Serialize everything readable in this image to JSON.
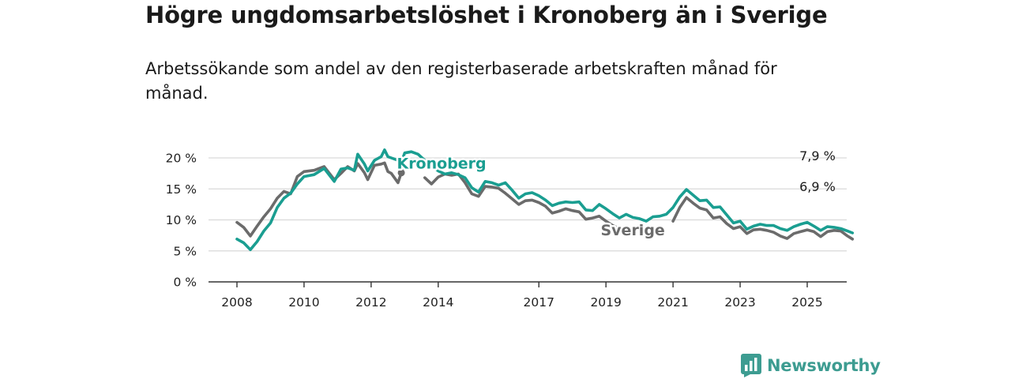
{
  "chart_data": {
    "type": "line",
    "title": "Högre ungdomsarbetslöshet i Kronoberg än i Sverige",
    "subtitle": "Arbetssökande som andel av den registerbaserade arbetskraften månad för månad.",
    "xlabel": "",
    "ylabel": "",
    "ylim": [
      0,
      20
    ],
    "xlim": [
      2007.6,
      2026.2
    ],
    "grid": true,
    "x_ticks": [
      "2008",
      "2010",
      "2012",
      "2014",
      "2017",
      "2019",
      "2021",
      "2023",
      "2025"
    ],
    "y_ticks": [
      "0 %",
      "5 %",
      "10 %",
      "15 %",
      "20 %"
    ],
    "series": [
      {
        "name": "Kronoberg",
        "color": "#1a9e91",
        "end_label": "7,9 %",
        "points": [
          [
            2008.0,
            6.9
          ],
          [
            2008.2,
            6.3
          ],
          [
            2008.4,
            5.2
          ],
          [
            2008.6,
            6.5
          ],
          [
            2008.8,
            8.2
          ],
          [
            2009.0,
            9.5
          ],
          [
            2009.2,
            12.0
          ],
          [
            2009.4,
            13.5
          ],
          [
            2009.6,
            14.3
          ],
          [
            2009.8,
            15.8
          ],
          [
            2010.0,
            17.0
          ],
          [
            2010.3,
            17.3
          ],
          [
            2010.6,
            18.3
          ],
          [
            2010.9,
            16.2
          ],
          [
            2011.1,
            18.2
          ],
          [
            2011.3,
            18.4
          ],
          [
            2011.5,
            18.0
          ],
          [
            2011.6,
            20.6
          ],
          [
            2011.8,
            19.0
          ],
          [
            2011.9,
            17.9
          ],
          [
            2012.1,
            19.6
          ],
          [
            2012.3,
            20.2
          ],
          [
            2012.4,
            21.3
          ],
          [
            2012.5,
            20.2
          ],
          [
            2012.6,
            20.0
          ],
          [
            2012.8,
            19.6
          ],
          [
            2012.9,
            18.6
          ]
        ]
      },
      {
        "name": "Kronoberg",
        "color": "#1a9e91",
        "end_label": "",
        "points": [
          [
            2012.9,
            19.3
          ],
          [
            2013.0,
            20.8
          ],
          [
            2013.2,
            21.0
          ],
          [
            2013.4,
            20.6
          ],
          [
            2013.6,
            19.6
          ],
          [
            2013.8,
            18.8
          ],
          [
            2014.0,
            17.9
          ],
          [
            2014.2,
            17.4
          ],
          [
            2014.4,
            17.6
          ],
          [
            2014.6,
            17.3
          ],
          [
            2014.8,
            16.8
          ],
          [
            2015.0,
            15.2
          ],
          [
            2015.2,
            14.5
          ],
          [
            2015.4,
            16.2
          ],
          [
            2015.6,
            16.0
          ],
          [
            2015.8,
            15.6
          ],
          [
            2016.0,
            16.0
          ],
          [
            2016.2,
            14.8
          ],
          [
            2016.4,
            13.5
          ],
          [
            2016.6,
            14.2
          ],
          [
            2016.8,
            14.4
          ],
          [
            2017.0,
            13.9
          ],
          [
            2017.2,
            13.2
          ],
          [
            2017.4,
            12.3
          ],
          [
            2017.6,
            12.7
          ],
          [
            2017.8,
            12.9
          ],
          [
            2018.0,
            12.8
          ],
          [
            2018.2,
            12.9
          ],
          [
            2018.4,
            11.6
          ],
          [
            2018.6,
            11.5
          ],
          [
            2018.8,
            12.5
          ],
          [
            2019.0,
            11.8
          ],
          [
            2019.2,
            11.0
          ],
          [
            2019.4,
            10.3
          ],
          [
            2019.6,
            10.9
          ],
          [
            2019.8,
            10.4
          ],
          [
            2020.0,
            10.2
          ],
          [
            2020.2,
            9.8
          ],
          [
            2020.4,
            10.5
          ],
          [
            2020.6,
            10.6
          ],
          [
            2020.8,
            10.9
          ],
          [
            2021.0,
            12.0
          ],
          [
            2021.2,
            13.7
          ],
          [
            2021.4,
            14.9
          ],
          [
            2021.6,
            14.0
          ],
          [
            2021.8,
            13.1
          ],
          [
            2022.0,
            13.2
          ],
          [
            2022.2,
            12.0
          ],
          [
            2022.4,
            12.1
          ],
          [
            2022.6,
            10.8
          ],
          [
            2022.8,
            9.5
          ],
          [
            2023.0,
            9.8
          ],
          [
            2023.2,
            8.5
          ],
          [
            2023.4,
            9.0
          ],
          [
            2023.6,
            9.3
          ],
          [
            2023.8,
            9.1
          ],
          [
            2024.0,
            9.1
          ],
          [
            2024.2,
            8.6
          ],
          [
            2024.4,
            8.3
          ],
          [
            2024.6,
            8.9
          ],
          [
            2024.8,
            9.3
          ],
          [
            2025.0,
            9.6
          ],
          [
            2025.2,
            9.0
          ],
          [
            2025.4,
            8.3
          ],
          [
            2025.6,
            8.9
          ],
          [
            2025.8,
            8.8
          ],
          [
            2026.0,
            8.6
          ],
          [
            2026.2,
            8.2
          ],
          [
            2026.35,
            7.9
          ]
        ]
      },
      {
        "name": "Sverige",
        "color": "#6b6b6b",
        "end_label": "6,9 %",
        "points": [
          [
            2008.0,
            9.6
          ],
          [
            2008.2,
            8.8
          ],
          [
            2008.4,
            7.4
          ],
          [
            2008.6,
            9.0
          ],
          [
            2008.8,
            10.5
          ],
          [
            2009.0,
            11.8
          ],
          [
            2009.2,
            13.5
          ],
          [
            2009.4,
            14.6
          ],
          [
            2009.6,
            14.2
          ],
          [
            2009.8,
            17.0
          ],
          [
            2010.0,
            17.8
          ],
          [
            2010.3,
            18.0
          ],
          [
            2010.6,
            18.6
          ],
          [
            2010.9,
            16.5
          ],
          [
            2011.1,
            17.5
          ],
          [
            2011.3,
            18.6
          ],
          [
            2011.5,
            17.9
          ],
          [
            2011.6,
            19.1
          ],
          [
            2011.8,
            17.6
          ],
          [
            2011.9,
            16.5
          ],
          [
            2012.1,
            18.8
          ],
          [
            2012.3,
            19.0
          ],
          [
            2012.4,
            19.2
          ],
          [
            2012.5,
            17.8
          ],
          [
            2012.6,
            17.5
          ],
          [
            2012.8,
            16.0
          ],
          [
            2012.9,
            17.6
          ]
        ]
      },
      {
        "name": "Sverige",
        "color": "#6b6b6b",
        "end_label": "",
        "points": [
          [
            2013.6,
            16.8
          ],
          [
            2013.8,
            15.8
          ],
          [
            2014.0,
            16.9
          ],
          [
            2014.2,
            17.4
          ],
          [
            2014.4,
            17.2
          ],
          [
            2014.6,
            17.4
          ],
          [
            2014.8,
            16.0
          ],
          [
            2015.0,
            14.2
          ],
          [
            2015.2,
            13.8
          ],
          [
            2015.4,
            15.4
          ],
          [
            2015.6,
            15.3
          ],
          [
            2015.8,
            15.1
          ],
          [
            2016.0,
            14.3
          ],
          [
            2016.2,
            13.4
          ],
          [
            2016.4,
            12.5
          ],
          [
            2016.6,
            13.1
          ],
          [
            2016.8,
            13.2
          ],
          [
            2017.0,
            12.8
          ],
          [
            2017.2,
            12.2
          ],
          [
            2017.4,
            11.1
          ],
          [
            2017.6,
            11.4
          ],
          [
            2017.8,
            11.8
          ],
          [
            2018.0,
            11.5
          ],
          [
            2018.2,
            11.3
          ],
          [
            2018.4,
            10.1
          ],
          [
            2018.6,
            10.3
          ],
          [
            2018.8,
            10.6
          ],
          [
            2019.0,
            9.8
          ],
          [
            2019.2,
            9.1
          ],
          [
            2019.4,
            8.6
          ],
          [
            2019.6,
            8.9
          ],
          [
            2019.8,
            8.6
          ]
        ]
      },
      {
        "name": "Sverige",
        "color": "#6b6b6b",
        "end_label": "",
        "points": [
          [
            2021.0,
            9.8
          ],
          [
            2021.2,
            12.0
          ],
          [
            2021.4,
            13.6
          ],
          [
            2021.6,
            12.7
          ],
          [
            2021.8,
            11.9
          ],
          [
            2022.0,
            11.6
          ],
          [
            2022.2,
            10.3
          ],
          [
            2022.4,
            10.5
          ],
          [
            2022.6,
            9.4
          ],
          [
            2022.8,
            8.6
          ],
          [
            2023.0,
            8.9
          ],
          [
            2023.2,
            7.8
          ],
          [
            2023.4,
            8.4
          ],
          [
            2023.6,
            8.5
          ],
          [
            2023.8,
            8.3
          ],
          [
            2024.0,
            8.0
          ],
          [
            2024.2,
            7.4
          ],
          [
            2024.4,
            7.0
          ],
          [
            2024.6,
            7.8
          ],
          [
            2024.8,
            8.1
          ],
          [
            2025.0,
            8.4
          ],
          [
            2025.2,
            8.1
          ],
          [
            2025.4,
            7.3
          ],
          [
            2025.6,
            8.1
          ],
          [
            2025.8,
            8.3
          ],
          [
            2026.0,
            8.2
          ],
          [
            2026.2,
            7.4
          ],
          [
            2026.35,
            6.9
          ]
        ]
      }
    ],
    "annotations": [
      {
        "text": "Kronoberg",
        "x": 2014.1,
        "y": 19.2,
        "color": "#1a9e91"
      },
      {
        "text": "Sverige",
        "x": 2019.8,
        "y": 8.4,
        "color": "#6b6b6b"
      }
    ]
  },
  "branding": {
    "logo_text": "Newsworthy",
    "logo_icon": "bar-chart-icon",
    "color": "#3d9c91"
  }
}
